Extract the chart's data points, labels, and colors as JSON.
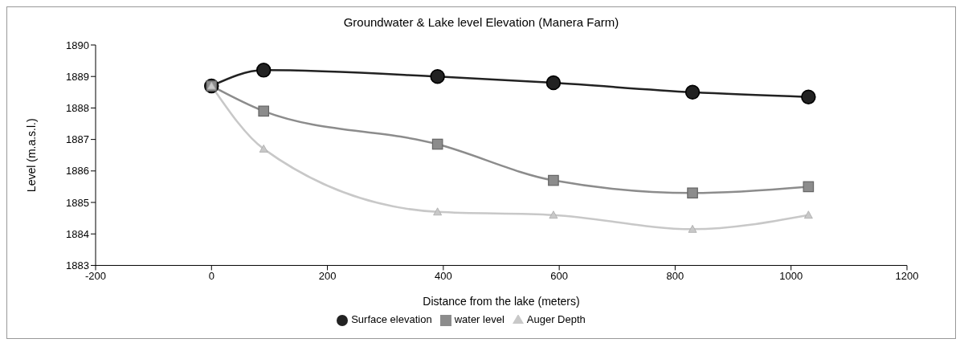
{
  "chart_data": {
    "type": "line",
    "title": "Groundwater & Lake level Elevation (Manera Farm)",
    "xlabel": "Distance from the lake (meters)",
    "ylabel": "Level (m.a.s.l.)",
    "x": [
      0,
      90,
      390,
      590,
      830,
      1030
    ],
    "series": [
      {
        "name": "Surface elevation",
        "color": "#222222",
        "marker": "circle",
        "values": [
          1888.7,
          1889.2,
          1889.0,
          1888.8,
          1888.5,
          1888.35
        ]
      },
      {
        "name": "water level",
        "color": "#8c8c8c",
        "marker": "square",
        "values": [
          1888.7,
          1887.9,
          1886.85,
          1885.7,
          1885.3,
          1885.5
        ]
      },
      {
        "name": "Auger Depth",
        "color": "#c8c8c8",
        "marker": "triangle",
        "values": [
          1888.7,
          1886.7,
          1884.7,
          1884.6,
          1884.15,
          1884.6
        ]
      }
    ],
    "xlim": [
      -200,
      1200
    ],
    "xticks": [
      -200,
      0,
      200,
      400,
      600,
      800,
      1000,
      1200
    ],
    "ylim": [
      1883,
      1890
    ],
    "yticks": [
      1883,
      1884,
      1885,
      1886,
      1887,
      1888,
      1889,
      1890
    ],
    "grid": false,
    "legend": "bottom",
    "line_style": "solid"
  }
}
